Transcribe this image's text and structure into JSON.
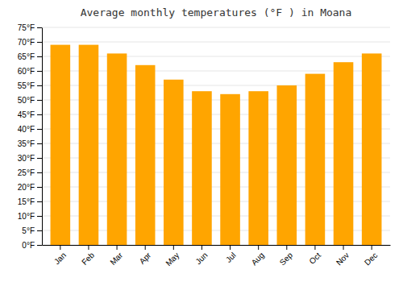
{
  "chart_data": {
    "type": "bar",
    "title": "Average monthly temperatures (°F ) in Moana",
    "categories": [
      "Jan",
      "Feb",
      "Mar",
      "Apr",
      "May",
      "Jun",
      "Jul",
      "Aug",
      "Sep",
      "Oct",
      "Nov",
      "Dec"
    ],
    "values": [
      69,
      69,
      66,
      62,
      57,
      53,
      52,
      53,
      55,
      59,
      63,
      66
    ],
    "color": "#FFA500",
    "ylim": [
      0,
      75
    ],
    "yticks": [
      {
        "value": 0,
        "label": "0°F"
      },
      {
        "value": 5,
        "label": "5°F"
      },
      {
        "value": 10,
        "label": "10°F"
      },
      {
        "value": 15,
        "label": "15°F"
      },
      {
        "value": 20,
        "label": "20°F"
      },
      {
        "value": 25,
        "label": "25°F"
      },
      {
        "value": 30,
        "label": "30°F"
      },
      {
        "value": 35,
        "label": "35°F"
      },
      {
        "value": 40,
        "label": "40°F"
      },
      {
        "value": 45,
        "label": "45°F"
      },
      {
        "value": 50,
        "label": "50°F"
      },
      {
        "value": 55,
        "label": "55°F"
      },
      {
        "value": 60,
        "label": "60°F"
      },
      {
        "value": 65,
        "label": "65°F"
      },
      {
        "value": 70,
        "label": "70°F"
      },
      {
        "value": 75,
        "label": "75°F"
      }
    ],
    "grid": true
  }
}
